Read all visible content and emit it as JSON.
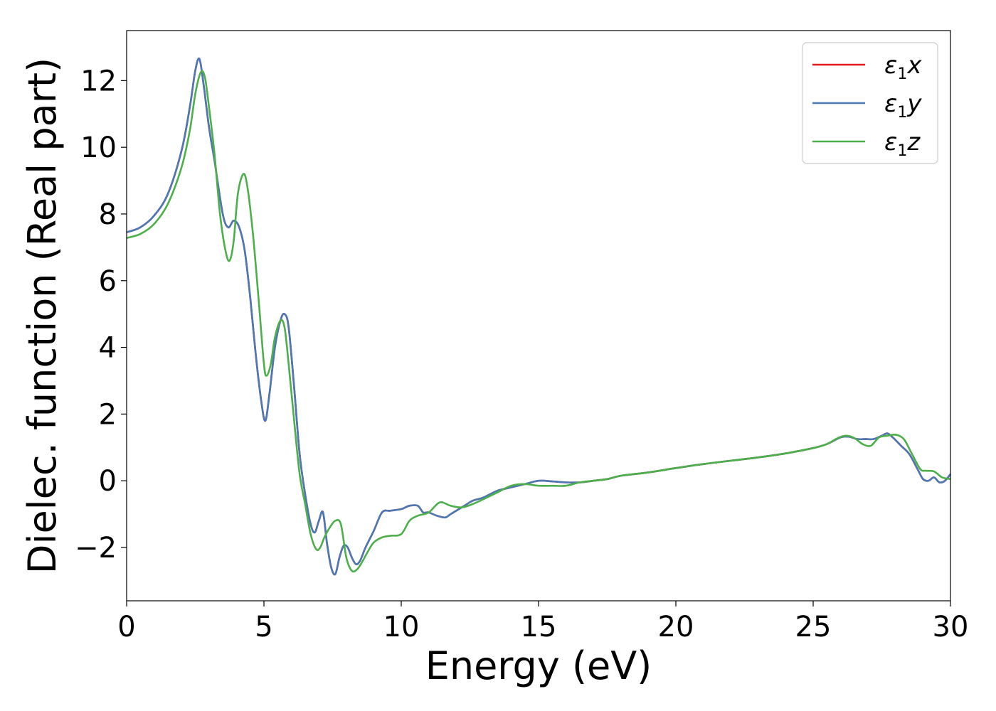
{
  "chart_data": {
    "type": "line",
    "xlabel": "Energy (eV)",
    "ylabel": "Dielec. function (Real part)",
    "xlim": [
      0,
      30
    ],
    "ylim": [
      -3.6,
      13.5
    ],
    "xticks": [
      0,
      5,
      10,
      15,
      20,
      25,
      30
    ],
    "xtick_labels": [
      "0",
      "5",
      "10",
      "15",
      "20",
      "25",
      "30"
    ],
    "yticks": [
      -2,
      0,
      2,
      4,
      6,
      8,
      10,
      12
    ],
    "ytick_labels": [
      "−2",
      "0",
      "2",
      "4",
      "6",
      "8",
      "10",
      "12"
    ],
    "grid": false,
    "legend_position": "top-right",
    "series": [
      {
        "name": "ε1x",
        "label_base": "ε",
        "label_sub": "1",
        "label_var": "x",
        "color": "#e41a1c",
        "x": [
          0,
          0.5,
          1.0,
          1.5,
          2.0,
          2.3,
          2.5,
          2.65,
          2.8,
          3.0,
          3.2,
          3.5,
          3.7,
          3.9,
          4.1,
          4.3,
          4.5,
          4.7,
          4.9,
          5.05,
          5.2,
          5.4,
          5.6,
          5.75,
          5.9,
          6.1,
          6.3,
          6.5,
          6.7,
          6.85,
          7.0,
          7.15,
          7.3,
          7.45,
          7.6,
          7.75,
          7.9,
          8.05,
          8.2,
          8.35,
          8.5,
          8.7,
          9.0,
          9.3,
          9.6,
          10.0,
          10.3,
          10.6,
          10.8,
          11.0,
          11.3,
          11.6,
          11.8,
          12.0,
          12.3,
          12.6,
          13.0,
          13.5,
          14.0,
          14.5,
          15.0,
          15.5,
          16.0,
          16.5,
          17.0,
          17.5,
          18.0,
          19.0,
          20.0,
          21.0,
          22.0,
          23.0,
          24.0,
          25.0,
          25.5,
          26.0,
          26.3,
          26.6,
          26.9,
          27.2,
          27.5,
          27.7,
          27.9,
          28.2,
          28.5,
          28.8,
          29.0,
          29.2,
          29.4,
          29.6,
          29.8,
          30.0
        ],
        "y": [
          7.45,
          7.6,
          7.95,
          8.6,
          9.9,
          11.2,
          12.3,
          12.65,
          11.9,
          10.6,
          9.6,
          8.0,
          7.6,
          7.8,
          7.6,
          6.9,
          5.5,
          3.8,
          2.4,
          1.8,
          2.6,
          4.0,
          4.8,
          5.0,
          4.6,
          2.8,
          0.8,
          -0.4,
          -1.3,
          -1.55,
          -1.2,
          -0.95,
          -1.9,
          -2.6,
          -2.8,
          -2.3,
          -1.95,
          -2.0,
          -2.3,
          -2.5,
          -2.4,
          -2.0,
          -1.5,
          -0.95,
          -0.9,
          -0.85,
          -0.75,
          -0.75,
          -0.95,
          -0.95,
          -1.05,
          -1.1,
          -1.0,
          -0.9,
          -0.75,
          -0.6,
          -0.5,
          -0.3,
          -0.2,
          -0.1,
          0.0,
          -0.02,
          -0.05,
          -0.05,
          0.0,
          0.05,
          0.15,
          0.25,
          0.38,
          0.5,
          0.6,
          0.7,
          0.82,
          0.98,
          1.1,
          1.3,
          1.32,
          1.25,
          1.25,
          1.25,
          1.35,
          1.42,
          1.3,
          1.05,
          0.8,
          0.35,
          0.05,
          0.0,
          0.1,
          -0.05,
          0.0,
          0.2
        ]
      },
      {
        "name": "ε1y",
        "label_base": "ε",
        "label_sub": "1",
        "label_var": "y",
        "color": "#4a79b5",
        "x": [
          0,
          0.5,
          1.0,
          1.5,
          2.0,
          2.3,
          2.5,
          2.65,
          2.8,
          3.0,
          3.2,
          3.5,
          3.7,
          3.9,
          4.1,
          4.3,
          4.5,
          4.7,
          4.9,
          5.05,
          5.2,
          5.4,
          5.6,
          5.75,
          5.9,
          6.1,
          6.3,
          6.5,
          6.7,
          6.85,
          7.0,
          7.15,
          7.3,
          7.45,
          7.6,
          7.75,
          7.9,
          8.05,
          8.2,
          8.35,
          8.5,
          8.7,
          9.0,
          9.3,
          9.6,
          10.0,
          10.3,
          10.6,
          10.8,
          11.0,
          11.3,
          11.6,
          11.8,
          12.0,
          12.3,
          12.6,
          13.0,
          13.5,
          14.0,
          14.5,
          15.0,
          15.5,
          16.0,
          16.5,
          17.0,
          17.5,
          18.0,
          19.0,
          20.0,
          21.0,
          22.0,
          23.0,
          24.0,
          25.0,
          25.5,
          26.0,
          26.3,
          26.6,
          26.9,
          27.2,
          27.5,
          27.7,
          27.9,
          28.2,
          28.5,
          28.8,
          29.0,
          29.2,
          29.4,
          29.6,
          29.8,
          30.0
        ],
        "y": [
          7.45,
          7.6,
          7.95,
          8.6,
          9.9,
          11.2,
          12.3,
          12.65,
          11.9,
          10.6,
          9.6,
          8.0,
          7.6,
          7.8,
          7.6,
          6.9,
          5.5,
          3.8,
          2.4,
          1.8,
          2.6,
          4.0,
          4.8,
          5.0,
          4.6,
          2.8,
          0.8,
          -0.4,
          -1.3,
          -1.55,
          -1.2,
          -0.95,
          -1.9,
          -2.6,
          -2.8,
          -2.3,
          -1.95,
          -2.0,
          -2.3,
          -2.5,
          -2.4,
          -2.0,
          -1.5,
          -0.95,
          -0.9,
          -0.85,
          -0.75,
          -0.75,
          -0.95,
          -0.95,
          -1.05,
          -1.1,
          -1.0,
          -0.9,
          -0.75,
          -0.6,
          -0.5,
          -0.3,
          -0.2,
          -0.1,
          0.0,
          -0.02,
          -0.05,
          -0.05,
          0.0,
          0.05,
          0.15,
          0.25,
          0.38,
          0.5,
          0.6,
          0.7,
          0.82,
          0.98,
          1.1,
          1.3,
          1.32,
          1.25,
          1.25,
          1.25,
          1.35,
          1.42,
          1.3,
          1.05,
          0.8,
          0.35,
          0.05,
          0.0,
          0.1,
          -0.05,
          0.0,
          0.2
        ]
      },
      {
        "name": "ε1z",
        "label_base": "ε",
        "label_sub": "1",
        "label_var": "z",
        "color": "#4daf4a",
        "x": [
          0,
          0.5,
          1.0,
          1.5,
          2.0,
          2.3,
          2.5,
          2.7,
          2.85,
          3.0,
          3.2,
          3.4,
          3.6,
          3.75,
          3.9,
          4.05,
          4.25,
          4.4,
          4.6,
          4.8,
          5.0,
          5.1,
          5.25,
          5.4,
          5.6,
          5.75,
          5.9,
          6.1,
          6.3,
          6.5,
          6.7,
          6.9,
          7.05,
          7.2,
          7.4,
          7.6,
          7.8,
          8.0,
          8.2,
          8.4,
          8.6,
          8.8,
          9.0,
          9.3,
          9.6,
          10.0,
          10.3,
          10.6,
          11.0,
          11.4,
          11.8,
          12.2,
          12.6,
          13.0,
          13.5,
          14.0,
          14.5,
          15.0,
          15.5,
          16.0,
          16.5,
          17.0,
          17.5,
          18.0,
          19.0,
          20.0,
          21.0,
          22.0,
          23.0,
          24.0,
          25.0,
          25.5,
          25.9,
          26.2,
          26.5,
          26.8,
          27.1,
          27.4,
          27.7,
          28.0,
          28.3,
          28.6,
          28.9,
          29.1,
          29.4,
          29.7,
          30.0
        ],
        "y": [
          7.28,
          7.4,
          7.7,
          8.3,
          9.4,
          10.5,
          11.6,
          12.25,
          12.1,
          11.2,
          9.8,
          8.0,
          6.9,
          6.6,
          7.2,
          8.6,
          9.2,
          8.8,
          7.4,
          5.5,
          3.5,
          3.15,
          3.5,
          4.3,
          4.8,
          4.6,
          3.5,
          1.8,
          0.2,
          -0.7,
          -1.6,
          -2.05,
          -2.0,
          -1.7,
          -1.4,
          -1.2,
          -1.3,
          -2.3,
          -2.7,
          -2.65,
          -2.4,
          -2.1,
          -1.85,
          -1.7,
          -1.65,
          -1.6,
          -1.2,
          -1.05,
          -0.95,
          -0.65,
          -0.75,
          -0.8,
          -0.7,
          -0.55,
          -0.35,
          -0.15,
          -0.1,
          -0.15,
          -0.15,
          -0.15,
          -0.05,
          0.0,
          0.05,
          0.15,
          0.25,
          0.38,
          0.5,
          0.6,
          0.7,
          0.82,
          0.98,
          1.1,
          1.28,
          1.35,
          1.28,
          1.1,
          1.05,
          1.3,
          1.35,
          1.38,
          1.25,
          0.8,
          0.35,
          0.3,
          0.28,
          0.1,
          0.05
        ]
      }
    ]
  }
}
